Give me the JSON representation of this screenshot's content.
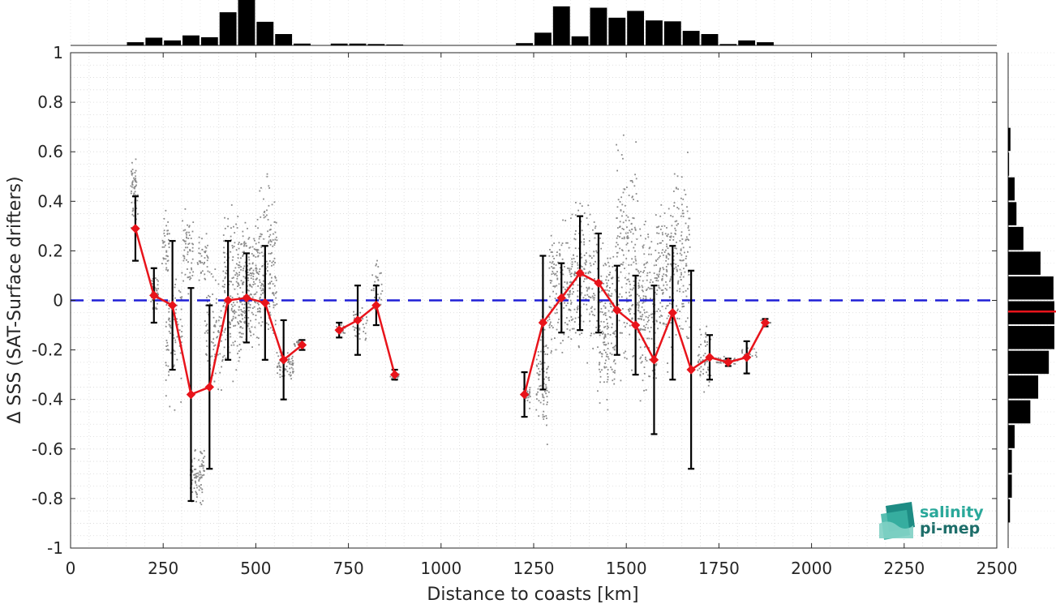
{
  "chart_data": {
    "type": "scatter",
    "xlabel": "Distance to coasts [km]",
    "ylabel": "Δ SSS (SAT-Surface drifters)",
    "xlim": [
      0,
      2500
    ],
    "ylim": [
      -1,
      1
    ],
    "xticks": [
      0,
      250,
      500,
      750,
      1000,
      1250,
      1500,
      1750,
      2000,
      2250,
      2500
    ],
    "yticks": [
      -1,
      -0.8,
      -0.6,
      -0.4,
      -0.2,
      0,
      0.2,
      0.4,
      0.6,
      0.8,
      1
    ],
    "xtick_labels": [
      "0",
      "250",
      "500",
      "750",
      "1000",
      "1250",
      "1500",
      "1750",
      "2000",
      "2250",
      "2500"
    ],
    "ytick_labels": [
      "-1",
      "-0.8",
      "-0.6",
      "-0.4",
      "-0.2",
      "0",
      "0.2",
      "0.4",
      "0.6",
      "0.8",
      "1"
    ],
    "grid": true,
    "reference_line": {
      "y": 0,
      "color": "#1f1fd6",
      "style": "dashed"
    },
    "series": [
      {
        "kind": "binned-mean",
        "color": "#e8141b",
        "x": [
          175,
          225,
          275,
          325,
          375,
          425,
          475,
          525,
          575,
          625,
          725,
          775,
          825,
          875,
          1225,
          1275,
          1325,
          1375,
          1425,
          1475,
          1525,
          1575,
          1625,
          1675,
          1725,
          1775,
          1825,
          1875
        ],
        "y": [
          0.29,
          0.02,
          -0.02,
          -0.38,
          -0.35,
          0.0,
          0.01,
          -0.01,
          -0.24,
          -0.18,
          -0.12,
          -0.08,
          -0.02,
          -0.3,
          -0.38,
          -0.09,
          0.01,
          0.11,
          0.07,
          -0.04,
          -0.1,
          -0.24,
          -0.05,
          -0.28,
          -0.23,
          -0.25,
          -0.23,
          -0.09
        ],
        "err": [
          0.13,
          0.11,
          0.26,
          0.43,
          0.33,
          0.24,
          0.18,
          0.23,
          0.16,
          0.02,
          0.03,
          0.14,
          0.08,
          0.02,
          0.09,
          0.27,
          0.14,
          0.23,
          0.2,
          0.18,
          0.2,
          0.3,
          0.27,
          0.4,
          0.09,
          0.015,
          0.065,
          0.015
        ],
        "connect_groups": [
          [
            0,
            10
          ],
          [
            10,
            14
          ],
          [
            14,
            28
          ]
        ]
      }
    ],
    "scatter_clusters": {
      "color": "#8a8a8a",
      "clusters": [
        {
          "x": [
            160,
            180
          ],
          "y": [
            0.25,
            0.62
          ],
          "n": 60
        },
        {
          "x": [
            215,
            235
          ],
          "y": [
            -0.06,
            0.12
          ],
          "n": 50
        },
        {
          "x": [
            245,
            265
          ],
          "y": [
            0.05,
            0.4
          ],
          "n": 40
        },
        {
          "x": [
            255,
            300
          ],
          "y": [
            -0.5,
            0.25
          ],
          "n": 90
        },
        {
          "x": [
            300,
            330
          ],
          "y": [
            0.0,
            0.42
          ],
          "n": 60
        },
        {
          "x": [
            320,
            360
          ],
          "y": [
            -0.85,
            -0.55
          ],
          "n": 90
        },
        {
          "x": [
            340,
            370
          ],
          "y": [
            0.05,
            0.3
          ],
          "n": 40
        },
        {
          "x": [
            360,
            410
          ],
          "y": [
            -0.45,
            0.2
          ],
          "n": 90
        },
        {
          "x": [
            410,
            460
          ],
          "y": [
            -0.45,
            0.45
          ],
          "n": 180
        },
        {
          "x": [
            460,
            500
          ],
          "y": [
            -0.3,
            0.42
          ],
          "n": 170
        },
        {
          "x": [
            500,
            555
          ],
          "y": [
            -0.3,
            0.57
          ],
          "n": 180
        },
        {
          "x": [
            555,
            600
          ],
          "y": [
            -0.35,
            -0.15
          ],
          "n": 70
        },
        {
          "x": [
            600,
            630
          ],
          "y": [
            -0.2,
            -0.15
          ],
          "n": 20
        },
        {
          "x": [
            715,
            740
          ],
          "y": [
            -0.15,
            -0.08
          ],
          "n": 20
        },
        {
          "x": [
            760,
            800
          ],
          "y": [
            -0.23,
            0.03
          ],
          "n": 30
        },
        {
          "x": [
            810,
            840
          ],
          "y": [
            -0.08,
            0.2
          ],
          "n": 30
        },
        {
          "x": [
            860,
            885
          ],
          "y": [
            -0.33,
            -0.28
          ],
          "n": 20
        },
        {
          "x": [
            1220,
            1240
          ],
          "y": [
            -0.45,
            -0.3
          ],
          "n": 30
        },
        {
          "x": [
            1255,
            1290
          ],
          "y": [
            -0.62,
            0.0
          ],
          "n": 90
        },
        {
          "x": [
            1290,
            1350
          ],
          "y": [
            -0.3,
            0.4
          ],
          "n": 150
        },
        {
          "x": [
            1350,
            1420
          ],
          "y": [
            -0.3,
            0.5
          ],
          "n": 180
        },
        {
          "x": [
            1420,
            1470
          ],
          "y": [
            -0.55,
            0.4
          ],
          "n": 170
        },
        {
          "x": [
            1470,
            1530
          ],
          "y": [
            -0.45,
            0.75
          ],
          "n": 180
        },
        {
          "x": [
            1530,
            1580
          ],
          "y": [
            -0.5,
            0.45
          ],
          "n": 170
        },
        {
          "x": [
            1580,
            1625
          ],
          "y": [
            -0.35,
            0.55
          ],
          "n": 150
        },
        {
          "x": [
            1625,
            1670
          ],
          "y": [
            -0.35,
            0.7
          ],
          "n": 130
        },
        {
          "x": [
            1690,
            1730
          ],
          "y": [
            -0.4,
            -0.05
          ],
          "n": 50
        },
        {
          "x": [
            1740,
            1800
          ],
          "y": [
            -0.26,
            -0.22
          ],
          "n": 30
        },
        {
          "x": [
            1810,
            1850
          ],
          "y": [
            -0.25,
            -0.17
          ],
          "n": 20
        },
        {
          "x": [
            1860,
            1890
          ],
          "y": [
            -0.1,
            -0.07
          ],
          "n": 15
        }
      ]
    },
    "top_histogram": {
      "bin_width": 50,
      "bins_start": [
        150,
        200,
        250,
        300,
        350,
        400,
        450,
        500,
        550,
        600,
        700,
        750,
        800,
        850,
        1200,
        1250,
        1300,
        1350,
        1400,
        1450,
        1500,
        1550,
        1600,
        1650,
        1700,
        1750,
        1800,
        1850
      ],
      "counts": [
        0.07,
        0.17,
        0.11,
        0.22,
        0.18,
        0.73,
        1.0,
        0.52,
        0.25,
        0.04,
        0.04,
        0.04,
        0.03,
        0.02,
        0.05,
        0.28,
        0.86,
        0.2,
        0.83,
        0.61,
        0.76,
        0.55,
        0.53,
        0.32,
        0.25,
        0.03,
        0.11,
        0.07
      ]
    },
    "right_histogram": {
      "bin_width": 0.1,
      "bins_start": [
        0.6,
        0.5,
        0.4,
        0.3,
        0.2,
        0.1,
        0.0,
        -0.1,
        -0.2,
        -0.3,
        -0.4,
        -0.5,
        -0.6,
        -0.7,
        -0.8,
        -0.9
      ],
      "counts": [
        0.05,
        0.02,
        0.14,
        0.18,
        0.33,
        0.7,
        0.98,
        1.0,
        1.0,
        0.88,
        0.65,
        0.48,
        0.14,
        0.08,
        0.08,
        0.04
      ],
      "mean_line": -0.045,
      "mean_color": "#e8141b"
    }
  },
  "logo": {
    "line1": "salinity",
    "line2": "pi-mep",
    "color": "#2aa89a"
  }
}
